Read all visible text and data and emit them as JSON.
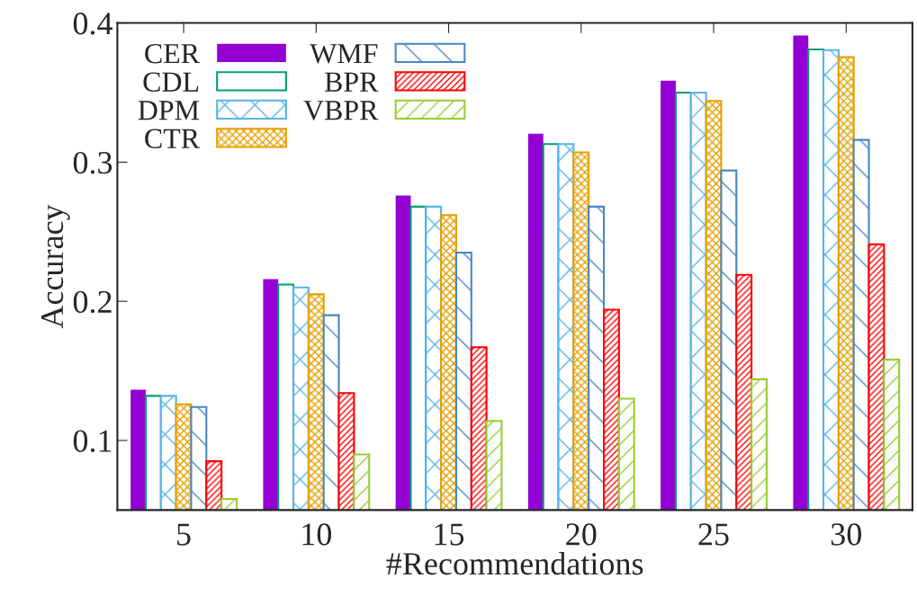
{
  "chart_data": {
    "type": "bar",
    "xlabel": "#Recommendations",
    "ylabel": "Accuracy",
    "categories": [
      "5",
      "10",
      "15",
      "20",
      "25",
      "30"
    ],
    "series": [
      {
        "name": "CER",
        "color": "#9400d3",
        "values": [
          0.1365,
          0.216,
          0.276,
          0.3205,
          0.3585,
          0.391
        ]
      },
      {
        "name": "CDL",
        "color": "#009e73",
        "values": [
          0.132,
          0.212,
          0.268,
          0.313,
          0.35,
          0.381
        ]
      },
      {
        "name": "DPM",
        "color": "#56b4e9",
        "values": [
          0.132,
          0.21,
          0.268,
          0.313,
          0.35,
          0.3805
        ]
      },
      {
        "name": "CTR",
        "color": "#e69f00",
        "values": [
          0.126,
          0.205,
          0.262,
          0.307,
          0.344,
          0.3755
        ]
      },
      {
        "name": "WMF",
        "color": "#4a86c0",
        "values": [
          0.124,
          0.19,
          0.235,
          0.268,
          0.294,
          0.316
        ]
      },
      {
        "name": "BPR",
        "color": "#ff0000",
        "values": [
          0.085,
          0.134,
          0.167,
          0.194,
          0.219,
          0.241
        ]
      },
      {
        "name": "VBPR",
        "color": "#99cc33",
        "values": [
          0.058,
          0.09,
          0.114,
          0.13,
          0.144,
          0.158
        ]
      }
    ],
    "ylim": [
      0.05,
      0.4
    ],
    "yticks": [
      0.1,
      0.2,
      0.3,
      0.4
    ],
    "grid": false,
    "legend": "top left"
  }
}
